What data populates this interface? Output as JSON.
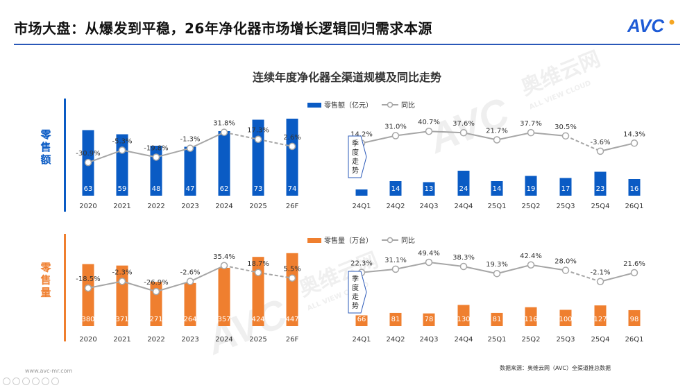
{
  "header": {
    "title": "市场大盘：从爆发到平稳，26年净化器市场增长逻辑回归需求本源",
    "logo_text": "AVC"
  },
  "watermark": {
    "cn": "奥维云网",
    "en": "ALL VIEW CLOUD",
    "logo": "AVC"
  },
  "chart_title": "连续年度净化器全渠道规模及同比走势",
  "footer": {
    "website": "www.avc-mr.com",
    "source": "数据来源：奥维云网（AVC）全渠道推总数据"
  },
  "colors": {
    "retail_value": "#0a5bc4",
    "retail_volume": "#ef7f2f",
    "yoy_line": "#a6a6a6",
    "header_line": "#2a58b8",
    "logo": "#1e5bd6",
    "logo_accent": "#f5a623"
  },
  "chart_data": [
    {
      "type": "bar",
      "panel_label": "零售额",
      "legend": {
        "bar": "零售额（亿元）",
        "line": "同比"
      },
      "quarterly_note": "季度走势",
      "annual": {
        "categories": [
          "2020",
          "2021",
          "2022",
          "2023",
          "2024",
          "2025",
          "26F"
        ],
        "values": [
          63,
          59,
          48,
          47,
          62,
          73,
          74
        ],
        "yoy_labels": [
          "-30.9%",
          "-5.3%",
          "-19.8%",
          "-1.3%",
          "31.8%",
          "17.3%",
          "2.6%"
        ],
        "yoy": [
          -30.9,
          -5.3,
          -19.8,
          -1.3,
          31.8,
          17.3,
          2.6
        ]
      },
      "quarterly": {
        "categories": [
          "24Q1",
          "24Q2",
          "24Q3",
          "24Q4",
          "25Q1",
          "25Q2",
          "25Q3",
          "25Q4",
          "26Q1"
        ],
        "values": [
          6,
          14,
          13,
          24,
          14,
          19,
          17,
          23,
          16
        ],
        "value_labels": [
          "",
          "14",
          "13",
          "24",
          "14",
          "19",
          "17",
          "23",
          "16"
        ],
        "yoy_labels": [
          "14.2%",
          "31.0%",
          "40.7%",
          "37.6%",
          "21.7%",
          "37.7%",
          "30.5%",
          "-3.6%",
          "14.3%"
        ],
        "yoy": [
          14.2,
          31.0,
          40.7,
          37.6,
          21.7,
          37.7,
          30.5,
          -3.6,
          14.3
        ]
      }
    },
    {
      "type": "bar",
      "panel_label": "零售量",
      "legend": {
        "bar": "零售量（万台）",
        "line": "同比"
      },
      "quarterly_note": "季度走势",
      "annual": {
        "categories": [
          "2020",
          "2021",
          "2022",
          "2023",
          "2024",
          "2025",
          "26F"
        ],
        "values": [
          380,
          371,
          271,
          264,
          357,
          424,
          447
        ],
        "yoy_labels": [
          "-18.5%",
          "-2.3%",
          "-26.9%",
          "-2.6%",
          "35.4%",
          "18.7%",
          "5.5%"
        ],
        "yoy": [
          -18.5,
          -2.3,
          -26.9,
          -2.6,
          35.4,
          18.7,
          5.5
        ]
      },
      "quarterly": {
        "categories": [
          "24Q1",
          "24Q2",
          "24Q3",
          "24Q4",
          "25Q1",
          "25Q2",
          "25Q3",
          "25Q4",
          "26Q1"
        ],
        "values": [
          66,
          81,
          78,
          130,
          81,
          116,
          100,
          127,
          98
        ],
        "value_labels": [
          "66",
          "81",
          "78",
          "130",
          "81",
          "116",
          "100",
          "127",
          "98"
        ],
        "yoy_labels": [
          "22.3%",
          "31.1%",
          "49.4%",
          "38.3%",
          "19.3%",
          "42.4%",
          "28.0%",
          "-2.1%",
          "21.6%"
        ],
        "yoy": [
          22.3,
          31.1,
          49.4,
          38.3,
          19.3,
          42.4,
          28.0,
          -2.1,
          21.6
        ]
      }
    }
  ]
}
